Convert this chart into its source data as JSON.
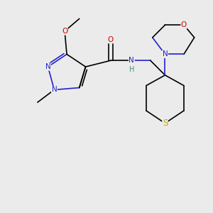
{
  "bg_color": "#ebebeb",
  "atom_colors": {
    "N": "#2222cc",
    "O": "#cc0000",
    "S": "#ccaa00",
    "C": "#000000",
    "H": "#4a8a7a"
  },
  "bond_lw": 1.2,
  "font_size": 7.5,
  "figsize": [
    3.0,
    3.0
  ],
  "dpi": 100
}
